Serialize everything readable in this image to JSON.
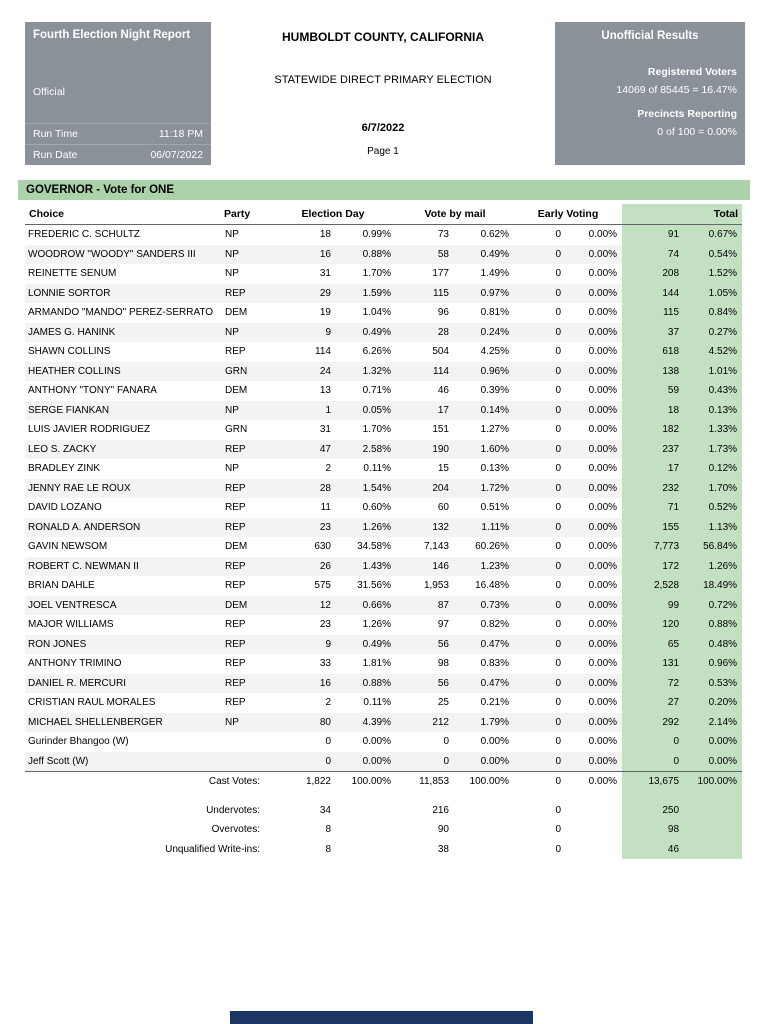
{
  "colors": {
    "box_gray": "#8b9198",
    "banner_green": "#abd2a9",
    "total_green": "#c3e0c2",
    "footer_navy": "#1c3564"
  },
  "report": {
    "title": "Fourth Election Night Report",
    "status": "Official",
    "run_time_label": "Run Time",
    "run_time": "11:18 PM",
    "run_date_label": "Run Date",
    "run_date": "06/07/2022"
  },
  "header": {
    "county": "HUMBOLDT COUNTY, CALIFORNIA",
    "election": "STATEWIDE DIRECT PRIMARY ELECTION",
    "date": "6/7/2022",
    "page": "Page 1"
  },
  "results_box": {
    "title": "Unofficial Results",
    "registered_voters_label": "Registered Voters",
    "registered_voters": "14069 of 85445 = 16.47%",
    "precincts_label": "Precincts Reporting",
    "precincts": "0 of 100 = 0.00%"
  },
  "contest": {
    "title": "GOVERNOR - Vote for ONE"
  },
  "table": {
    "headers": {
      "choice": "Choice",
      "party": "Party",
      "election_day": "Election Day",
      "vote_by_mail": "Vote by mail",
      "early_voting": "Early Voting",
      "total": "Total"
    },
    "rows": [
      {
        "choice": "FREDERIC C. SCHULTZ",
        "party": "NP",
        "ed": "18",
        "ed_pct": "0.99%",
        "vbm": "73",
        "vbm_pct": "0.62%",
        "ev": "0",
        "ev_pct": "0.00%",
        "total": "91",
        "total_pct": "0.67%"
      },
      {
        "choice": "WOODROW \"WOODY\" SANDERS III",
        "party": "NP",
        "ed": "16",
        "ed_pct": "0.88%",
        "vbm": "58",
        "vbm_pct": "0.49%",
        "ev": "0",
        "ev_pct": "0.00%",
        "total": "74",
        "total_pct": "0.54%"
      },
      {
        "choice": "REINETTE SENUM",
        "party": "NP",
        "ed": "31",
        "ed_pct": "1.70%",
        "vbm": "177",
        "vbm_pct": "1.49%",
        "ev": "0",
        "ev_pct": "0.00%",
        "total": "208",
        "total_pct": "1.52%"
      },
      {
        "choice": "LONNIE SORTOR",
        "party": "REP",
        "ed": "29",
        "ed_pct": "1.59%",
        "vbm": "115",
        "vbm_pct": "0.97%",
        "ev": "0",
        "ev_pct": "0.00%",
        "total": "144",
        "total_pct": "1.05%"
      },
      {
        "choice": "ARMANDO \"MANDO\" PEREZ-SERRATO",
        "party": "DEM",
        "ed": "19",
        "ed_pct": "1.04%",
        "vbm": "96",
        "vbm_pct": "0.81%",
        "ev": "0",
        "ev_pct": "0.00%",
        "total": "115",
        "total_pct": "0.84%"
      },
      {
        "choice": "JAMES G. HANINK",
        "party": "NP",
        "ed": "9",
        "ed_pct": "0.49%",
        "vbm": "28",
        "vbm_pct": "0.24%",
        "ev": "0",
        "ev_pct": "0.00%",
        "total": "37",
        "total_pct": "0.27%"
      },
      {
        "choice": "SHAWN COLLINS",
        "party": "REP",
        "ed": "114",
        "ed_pct": "6.26%",
        "vbm": "504",
        "vbm_pct": "4.25%",
        "ev": "0",
        "ev_pct": "0.00%",
        "total": "618",
        "total_pct": "4.52%"
      },
      {
        "choice": "HEATHER COLLINS",
        "party": "GRN",
        "ed": "24",
        "ed_pct": "1.32%",
        "vbm": "114",
        "vbm_pct": "0.96%",
        "ev": "0",
        "ev_pct": "0.00%",
        "total": "138",
        "total_pct": "1.01%"
      },
      {
        "choice": "ANTHONY \"TONY\" FANARA",
        "party": "DEM",
        "ed": "13",
        "ed_pct": "0.71%",
        "vbm": "46",
        "vbm_pct": "0.39%",
        "ev": "0",
        "ev_pct": "0.00%",
        "total": "59",
        "total_pct": "0.43%"
      },
      {
        "choice": "SERGE FIANKAN",
        "party": "NP",
        "ed": "1",
        "ed_pct": "0.05%",
        "vbm": "17",
        "vbm_pct": "0.14%",
        "ev": "0",
        "ev_pct": "0.00%",
        "total": "18",
        "total_pct": "0.13%"
      },
      {
        "choice": "LUIS JAVIER RODRIGUEZ",
        "party": "GRN",
        "ed": "31",
        "ed_pct": "1.70%",
        "vbm": "151",
        "vbm_pct": "1.27%",
        "ev": "0",
        "ev_pct": "0.00%",
        "total": "182",
        "total_pct": "1.33%"
      },
      {
        "choice": "LEO S. ZACKY",
        "party": "REP",
        "ed": "47",
        "ed_pct": "2.58%",
        "vbm": "190",
        "vbm_pct": "1.60%",
        "ev": "0",
        "ev_pct": "0.00%",
        "total": "237",
        "total_pct": "1.73%"
      },
      {
        "choice": "BRADLEY ZINK",
        "party": "NP",
        "ed": "2",
        "ed_pct": "0.11%",
        "vbm": "15",
        "vbm_pct": "0.13%",
        "ev": "0",
        "ev_pct": "0.00%",
        "total": "17",
        "total_pct": "0.12%"
      },
      {
        "choice": "JENNY RAE LE ROUX",
        "party": "REP",
        "ed": "28",
        "ed_pct": "1.54%",
        "vbm": "204",
        "vbm_pct": "1.72%",
        "ev": "0",
        "ev_pct": "0.00%",
        "total": "232",
        "total_pct": "1.70%"
      },
      {
        "choice": "DAVID LOZANO",
        "party": "REP",
        "ed": "11",
        "ed_pct": "0.60%",
        "vbm": "60",
        "vbm_pct": "0.51%",
        "ev": "0",
        "ev_pct": "0.00%",
        "total": "71",
        "total_pct": "0.52%"
      },
      {
        "choice": "RONALD A. ANDERSON",
        "party": "REP",
        "ed": "23",
        "ed_pct": "1.26%",
        "vbm": "132",
        "vbm_pct": "1.11%",
        "ev": "0",
        "ev_pct": "0.00%",
        "total": "155",
        "total_pct": "1.13%"
      },
      {
        "choice": "GAVIN NEWSOM",
        "party": "DEM",
        "ed": "630",
        "ed_pct": "34.58%",
        "vbm": "7,143",
        "vbm_pct": "60.26%",
        "ev": "0",
        "ev_pct": "0.00%",
        "total": "7,773",
        "total_pct": "56.84%"
      },
      {
        "choice": "ROBERT C. NEWMAN II",
        "party": "REP",
        "ed": "26",
        "ed_pct": "1.43%",
        "vbm": "146",
        "vbm_pct": "1.23%",
        "ev": "0",
        "ev_pct": "0.00%",
        "total": "172",
        "total_pct": "1.26%"
      },
      {
        "choice": "BRIAN DAHLE",
        "party": "REP",
        "ed": "575",
        "ed_pct": "31.56%",
        "vbm": "1,953",
        "vbm_pct": "16.48%",
        "ev": "0",
        "ev_pct": "0.00%",
        "total": "2,528",
        "total_pct": "18.49%"
      },
      {
        "choice": "JOEL VENTRESCA",
        "party": "DEM",
        "ed": "12",
        "ed_pct": "0.66%",
        "vbm": "87",
        "vbm_pct": "0.73%",
        "ev": "0",
        "ev_pct": "0.00%",
        "total": "99",
        "total_pct": "0.72%"
      },
      {
        "choice": "MAJOR WILLIAMS",
        "party": "REP",
        "ed": "23",
        "ed_pct": "1.26%",
        "vbm": "97",
        "vbm_pct": "0.82%",
        "ev": "0",
        "ev_pct": "0.00%",
        "total": "120",
        "total_pct": "0.88%"
      },
      {
        "choice": "RON JONES",
        "party": "REP",
        "ed": "9",
        "ed_pct": "0.49%",
        "vbm": "56",
        "vbm_pct": "0.47%",
        "ev": "0",
        "ev_pct": "0.00%",
        "total": "65",
        "total_pct": "0.48%"
      },
      {
        "choice": "ANTHONY TRIMINO",
        "party": "REP",
        "ed": "33",
        "ed_pct": "1.81%",
        "vbm": "98",
        "vbm_pct": "0.83%",
        "ev": "0",
        "ev_pct": "0.00%",
        "total": "131",
        "total_pct": "0.96%"
      },
      {
        "choice": "DANIEL R. MERCURI",
        "party": "REP",
        "ed": "16",
        "ed_pct": "0.88%",
        "vbm": "56",
        "vbm_pct": "0.47%",
        "ev": "0",
        "ev_pct": "0.00%",
        "total": "72",
        "total_pct": "0.53%"
      },
      {
        "choice": "CRISTIAN RAUL MORALES",
        "party": "REP",
        "ed": "2",
        "ed_pct": "0.11%",
        "vbm": "25",
        "vbm_pct": "0.21%",
        "ev": "0",
        "ev_pct": "0.00%",
        "total": "27",
        "total_pct": "0.20%"
      },
      {
        "choice": "MICHAEL SHELLENBERGER",
        "party": "NP",
        "ed": "80",
        "ed_pct": "4.39%",
        "vbm": "212",
        "vbm_pct": "1.79%",
        "ev": "0",
        "ev_pct": "0.00%",
        "total": "292",
        "total_pct": "2.14%"
      },
      {
        "choice": "Gurinder Bhangoo (W)",
        "party": "",
        "ed": "0",
        "ed_pct": "0.00%",
        "vbm": "0",
        "vbm_pct": "0.00%",
        "ev": "0",
        "ev_pct": "0.00%",
        "total": "0",
        "total_pct": "0.00%"
      },
      {
        "choice": "Jeff Scott (W)",
        "party": "",
        "ed": "0",
        "ed_pct": "0.00%",
        "vbm": "0",
        "vbm_pct": "0.00%",
        "ev": "0",
        "ev_pct": "0.00%",
        "total": "0",
        "total_pct": "0.00%"
      }
    ],
    "summary": [
      {
        "label": "Cast Votes:",
        "gap_before": false,
        "ed": "1,822",
        "ed_pct": "100.00%",
        "vbm": "11,853",
        "vbm_pct": "100.00%",
        "ev": "0",
        "ev_pct": "0.00%",
        "total": "13,675",
        "total_pct": "100.00%"
      },
      {
        "label": "Undervotes:",
        "gap_before": true,
        "ed": "34",
        "ed_pct": "",
        "vbm": "216",
        "vbm_pct": "",
        "ev": "0",
        "ev_pct": "",
        "total": "250",
        "total_pct": ""
      },
      {
        "label": "Overvotes:",
        "gap_before": false,
        "ed": "8",
        "ed_pct": "",
        "vbm": "90",
        "vbm_pct": "",
        "ev": "0",
        "ev_pct": "",
        "total": "98",
        "total_pct": ""
      },
      {
        "label": "Unqualified Write-ins:",
        "gap_before": false,
        "ed": "8",
        "ed_pct": "",
        "vbm": "38",
        "vbm_pct": "",
        "ev": "0",
        "ev_pct": "",
        "total": "46",
        "total_pct": ""
      }
    ]
  }
}
